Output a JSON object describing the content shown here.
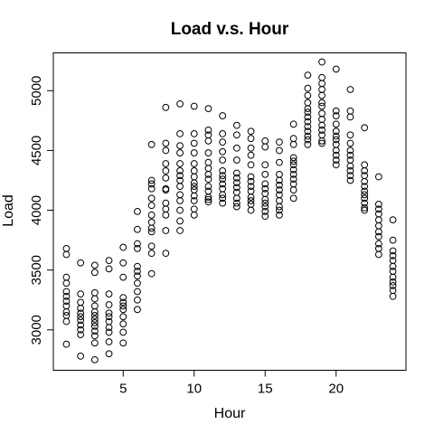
{
  "chart_data": {
    "type": "scatter",
    "title": "Load v.s. Hour",
    "xlabel": "Hour",
    "ylabel": "Load",
    "xlim": [
      0.08,
      24.92
    ],
    "ylim": [
      2662,
      5316
    ],
    "xticks": [
      5,
      10,
      15,
      20
    ],
    "yticks": [
      3000,
      3500,
      4000,
      4500,
      5000
    ],
    "marker": "open-circle",
    "grid": false,
    "series": [
      {
        "points": [
          [
            1,
            2880
          ],
          [
            1,
            3070
          ],
          [
            1,
            3120
          ],
          [
            1,
            3150
          ],
          [
            1,
            3200
          ],
          [
            1,
            3240
          ],
          [
            1,
            3280
          ],
          [
            1,
            3320
          ],
          [
            1,
            3390
          ],
          [
            1,
            3440
          ],
          [
            1,
            3630
          ],
          [
            1,
            3680
          ],
          [
            2,
            2780
          ],
          [
            2,
            2960
          ],
          [
            2,
            3000
          ],
          [
            2,
            3040
          ],
          [
            2,
            3080
          ],
          [
            2,
            3110
          ],
          [
            2,
            3140
          ],
          [
            2,
            3180
          ],
          [
            2,
            3230
          ],
          [
            2,
            3300
          ],
          [
            2,
            3560
          ],
          [
            3,
            2750
          ],
          [
            3,
            2890
          ],
          [
            3,
            2950
          ],
          [
            3,
            2990
          ],
          [
            3,
            3030
          ],
          [
            3,
            3060
          ],
          [
            3,
            3090
          ],
          [
            3,
            3120
          ],
          [
            3,
            3150
          ],
          [
            3,
            3200
          ],
          [
            3,
            3260
          ],
          [
            3,
            3310
          ],
          [
            3,
            3480
          ],
          [
            3,
            3540
          ],
          [
            4,
            2800
          ],
          [
            4,
            2900
          ],
          [
            4,
            2980
          ],
          [
            4,
            3020
          ],
          [
            4,
            3070
          ],
          [
            4,
            3110
          ],
          [
            4,
            3140
          ],
          [
            4,
            3210
          ],
          [
            4,
            3300
          ],
          [
            4,
            3510
          ],
          [
            4,
            3580
          ],
          [
            5,
            2890
          ],
          [
            5,
            2980
          ],
          [
            5,
            3050
          ],
          [
            5,
            3110
          ],
          [
            5,
            3170
          ],
          [
            5,
            3200
          ],
          [
            5,
            3230
          ],
          [
            5,
            3270
          ],
          [
            5,
            3440
          ],
          [
            5,
            3560
          ],
          [
            5,
            3690
          ],
          [
            6,
            3170
          ],
          [
            6,
            3250
          ],
          [
            6,
            3320
          ],
          [
            6,
            3390
          ],
          [
            6,
            3450
          ],
          [
            6,
            3490
          ],
          [
            6,
            3530
          ],
          [
            6,
            3680
          ],
          [
            6,
            3720
          ],
          [
            6,
            3840
          ],
          [
            6,
            3990
          ],
          [
            7,
            3470
          ],
          [
            7,
            3640
          ],
          [
            7,
            3700
          ],
          [
            7,
            3820
          ],
          [
            7,
            3850
          ],
          [
            7,
            3900
          ],
          [
            7,
            3960
          ],
          [
            7,
            4040
          ],
          [
            7,
            4100
          ],
          [
            7,
            4180
          ],
          [
            7,
            4220
          ],
          [
            7,
            4250
          ],
          [
            7,
            4550
          ],
          [
            8,
            3640
          ],
          [
            8,
            3830
          ],
          [
            8,
            3960
          ],
          [
            8,
            4010
          ],
          [
            8,
            4060
          ],
          [
            8,
            4170
          ],
          [
            8,
            4180
          ],
          [
            8,
            4270
          ],
          [
            8,
            4330
          ],
          [
            8,
            4390
          ],
          [
            8,
            4500
          ],
          [
            8,
            4560
          ],
          [
            8,
            4860
          ],
          [
            9,
            3830
          ],
          [
            9,
            3910
          ],
          [
            9,
            4000
          ],
          [
            9,
            4080
          ],
          [
            9,
            4130
          ],
          [
            9,
            4200
          ],
          [
            9,
            4250
          ],
          [
            9,
            4290
          ],
          [
            9,
            4330
          ],
          [
            9,
            4390
          ],
          [
            9,
            4480
          ],
          [
            9,
            4540
          ],
          [
            9,
            4640
          ],
          [
            9,
            4890
          ],
          [
            10,
            3960
          ],
          [
            10,
            4010
          ],
          [
            10,
            4080
          ],
          [
            10,
            4120
          ],
          [
            10,
            4170
          ],
          [
            10,
            4200
          ],
          [
            10,
            4230
          ],
          [
            10,
            4280
          ],
          [
            10,
            4330
          ],
          [
            10,
            4390
          ],
          [
            10,
            4480
          ],
          [
            10,
            4560
          ],
          [
            10,
            4640
          ],
          [
            10,
            4870
          ],
          [
            11,
            4070
          ],
          [
            11,
            4090
          ],
          [
            11,
            4110
          ],
          [
            11,
            4160
          ],
          [
            11,
            4200
          ],
          [
            11,
            4260
          ],
          [
            11,
            4300
          ],
          [
            11,
            4350
          ],
          [
            11,
            4400
          ],
          [
            11,
            4480
          ],
          [
            11,
            4580
          ],
          [
            11,
            4630
          ],
          [
            11,
            4670
          ],
          [
            11,
            4850
          ],
          [
            12,
            4060
          ],
          [
            12,
            4100
          ],
          [
            12,
            4130
          ],
          [
            12,
            4180
          ],
          [
            12,
            4220
          ],
          [
            12,
            4260
          ],
          [
            12,
            4290
          ],
          [
            12,
            4330
          ],
          [
            12,
            4420
          ],
          [
            12,
            4490
          ],
          [
            12,
            4570
          ],
          [
            12,
            4640
          ],
          [
            12,
            4790
          ],
          [
            13,
            4030
          ],
          [
            13,
            4060
          ],
          [
            13,
            4100
          ],
          [
            13,
            4150
          ],
          [
            13,
            4190
          ],
          [
            13,
            4230
          ],
          [
            13,
            4270
          ],
          [
            13,
            4310
          ],
          [
            13,
            4420
          ],
          [
            13,
            4520
          ],
          [
            13,
            4630
          ],
          [
            13,
            4710
          ],
          [
            14,
            4000
          ],
          [
            14,
            4050
          ],
          [
            14,
            4080
          ],
          [
            14,
            4110
          ],
          [
            14,
            4160
          ],
          [
            14,
            4200
          ],
          [
            14,
            4240
          ],
          [
            14,
            4280
          ],
          [
            14,
            4380
          ],
          [
            14,
            4460
          ],
          [
            14,
            4520
          ],
          [
            14,
            4600
          ],
          [
            14,
            4660
          ],
          [
            15,
            3950
          ],
          [
            15,
            3990
          ],
          [
            15,
            4030
          ],
          [
            15,
            4060
          ],
          [
            15,
            4090
          ],
          [
            15,
            4140
          ],
          [
            15,
            4180
          ],
          [
            15,
            4220
          ],
          [
            15,
            4300
          ],
          [
            15,
            4380
          ],
          [
            15,
            4530
          ],
          [
            15,
            4580
          ],
          [
            16,
            3960
          ],
          [
            16,
            4000
          ],
          [
            16,
            4030
          ],
          [
            16,
            4080
          ],
          [
            16,
            4130
          ],
          [
            16,
            4170
          ],
          [
            16,
            4210
          ],
          [
            16,
            4250
          ],
          [
            16,
            4300
          ],
          [
            16,
            4400
          ],
          [
            16,
            4500
          ],
          [
            16,
            4570
          ],
          [
            17,
            4100
          ],
          [
            17,
            4170
          ],
          [
            17,
            4220
          ],
          [
            17,
            4260
          ],
          [
            17,
            4300
          ],
          [
            17,
            4340
          ],
          [
            17,
            4380
          ],
          [
            17,
            4410
          ],
          [
            17,
            4440
          ],
          [
            17,
            4550
          ],
          [
            17,
            4600
          ],
          [
            17,
            4720
          ],
          [
            18,
            4550
          ],
          [
            18,
            4590
          ],
          [
            18,
            4620
          ],
          [
            18,
            4660
          ],
          [
            18,
            4700
          ],
          [
            18,
            4740
          ],
          [
            18,
            4780
          ],
          [
            18,
            4820
          ],
          [
            18,
            4850
          ],
          [
            18,
            4900
          ],
          [
            18,
            4960
          ],
          [
            18,
            5020
          ],
          [
            18,
            5130
          ],
          [
            19,
            4560
          ],
          [
            19,
            4580
          ],
          [
            19,
            4630
          ],
          [
            19,
            4670
          ],
          [
            19,
            4710
          ],
          [
            19,
            4760
          ],
          [
            19,
            4810
          ],
          [
            19,
            4870
          ],
          [
            19,
            4900
          ],
          [
            19,
            4960
          ],
          [
            19,
            5010
          ],
          [
            19,
            5060
          ],
          [
            19,
            5110
          ],
          [
            19,
            5240
          ],
          [
            20,
            4380
          ],
          [
            20,
            4420
          ],
          [
            20,
            4460
          ],
          [
            20,
            4500
          ],
          [
            20,
            4550
          ],
          [
            20,
            4590
          ],
          [
            20,
            4620
          ],
          [
            20,
            4660
          ],
          [
            20,
            4720
          ],
          [
            20,
            4790
          ],
          [
            20,
            4830
          ],
          [
            20,
            5180
          ],
          [
            21,
            4250
          ],
          [
            21,
            4290
          ],
          [
            21,
            4330
          ],
          [
            21,
            4370
          ],
          [
            21,
            4420
          ],
          [
            21,
            4460
          ],
          [
            21,
            4500
          ],
          [
            21,
            4560
          ],
          [
            21,
            4630
          ],
          [
            21,
            4780
          ],
          [
            21,
            4830
          ],
          [
            21,
            5010
          ],
          [
            22,
            4000
          ],
          [
            22,
            4020
          ],
          [
            22,
            4060
          ],
          [
            22,
            4100
          ],
          [
            22,
            4130
          ],
          [
            22,
            4160
          ],
          [
            22,
            4200
          ],
          [
            22,
            4240
          ],
          [
            22,
            4290
          ],
          [
            22,
            4330
          ],
          [
            22,
            4380
          ],
          [
            22,
            4690
          ],
          [
            23,
            3630
          ],
          [
            23,
            3680
          ],
          [
            23,
            3720
          ],
          [
            23,
            3780
          ],
          [
            23,
            3820
          ],
          [
            23,
            3870
          ],
          [
            23,
            3920
          ],
          [
            23,
            3970
          ],
          [
            23,
            4010
          ],
          [
            23,
            4050
          ],
          [
            23,
            4280
          ],
          [
            24,
            3280
          ],
          [
            24,
            3330
          ],
          [
            24,
            3370
          ],
          [
            24,
            3400
          ],
          [
            24,
            3440
          ],
          [
            24,
            3490
          ],
          [
            24,
            3530
          ],
          [
            24,
            3580
          ],
          [
            24,
            3620
          ],
          [
            24,
            3660
          ],
          [
            24,
            3750
          ],
          [
            24,
            3920
          ]
        ]
      }
    ]
  }
}
